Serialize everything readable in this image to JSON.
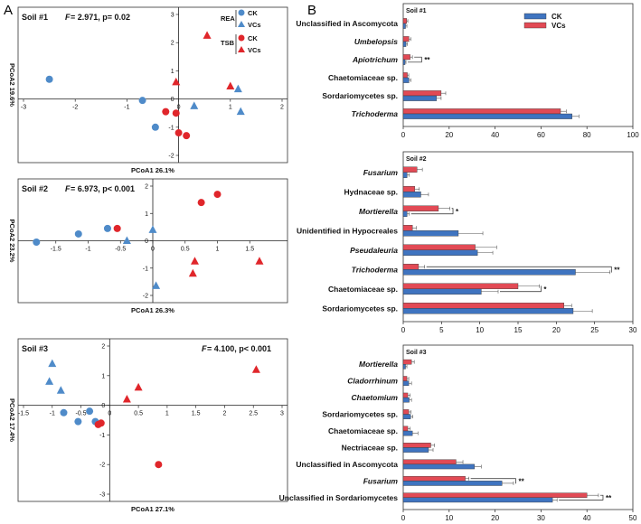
{
  "figure": {
    "panel_a_letter": "A",
    "panel_b_letter": "B"
  },
  "colors": {
    "ck": "#4f8bc9",
    "vcs": "#e0262b",
    "ck_bar": "#3f74c0",
    "vcs_bar": "#e24a55"
  },
  "chart_data": [
    {
      "type": "scatter",
      "panel": "A",
      "soil": "Soil #1",
      "stat_f": "F",
      "stat_rest": "= 2.971, p= 0.02",
      "xlabel": "PCoA1 26.1%",
      "ylabel": "PCoA2 19.6%",
      "xlim": [
        -3,
        2
      ],
      "ylim": [
        -2,
        3
      ],
      "xticks": [
        -3,
        -2,
        -1,
        0,
        1,
        2
      ],
      "yticks": [
        -2,
        -1,
        0,
        1,
        2,
        3
      ],
      "legend": {
        "rea": "REA",
        "tsb": "TSB",
        "ck": "CK",
        "vcs": "VCs",
        "placement": "top-right"
      },
      "series": [
        {
          "name": "REA CK",
          "marker": "circle",
          "color": "ck",
          "x": [
            -2.5,
            -0.7,
            -0.45
          ],
          "y": [
            0.7,
            -0.05,
            -1.0
          ]
        },
        {
          "name": "REA VCs",
          "marker": "triangle",
          "color": "ck",
          "x": [
            0.3,
            1.15,
            1.2
          ],
          "y": [
            -0.25,
            0.35,
            -0.45
          ]
        },
        {
          "name": "TSB CK",
          "marker": "circle",
          "color": "vcs",
          "x": [
            -0.25,
            -0.05,
            0.15,
            0.0
          ],
          "y": [
            -0.45,
            -0.5,
            -1.3,
            -1.2
          ]
        },
        {
          "name": "TSB VCs",
          "marker": "triangle",
          "color": "vcs",
          "x": [
            -0.05,
            0.55,
            1.0
          ],
          "y": [
            0.6,
            2.25,
            0.45
          ]
        }
      ]
    },
    {
      "type": "scatter",
      "panel": "A",
      "soil": "Soil #2",
      "stat_f": "F",
      "stat_rest": "= 6.973, p< 0.001",
      "xlabel": "PCoA1 26.3%",
      "ylabel": "PCoA2 23.2%",
      "xlim": [
        -2,
        2
      ],
      "ylim": [
        -2,
        2
      ],
      "xticks": [
        -1.5,
        -1,
        -0.5,
        0,
        0.5,
        1,
        1.5
      ],
      "yticks": [
        -2,
        -1,
        0,
        1,
        2
      ],
      "series": [
        {
          "name": "REA CK",
          "marker": "circle",
          "color": "ck",
          "x": [
            -1.8,
            -1.15,
            -0.7
          ],
          "y": [
            -0.05,
            0.25,
            0.45
          ]
        },
        {
          "name": "REA VCs",
          "marker": "triangle",
          "color": "ck",
          "x": [
            -0.4,
            0.0,
            0.05
          ],
          "y": [
            0.0,
            0.4,
            -1.65
          ]
        },
        {
          "name": "TSB CK",
          "marker": "circle",
          "color": "vcs",
          "x": [
            -0.55,
            0.75,
            1.0
          ],
          "y": [
            0.45,
            1.4,
            1.7
          ]
        },
        {
          "name": "TSB VCs",
          "marker": "triangle",
          "color": "vcs",
          "x": [
            0.65,
            0.62,
            1.65
          ],
          "y": [
            -0.75,
            -1.2,
            -0.75
          ]
        }
      ]
    },
    {
      "type": "scatter",
      "panel": "A",
      "soil": "Soil #3",
      "stat_f": "F",
      "stat_rest": "= 4.100, p< 0.001",
      "xlabel": "PCoA1 27.1%",
      "ylabel": "PCoA2 17.4%",
      "xlim": [
        -1.5,
        3
      ],
      "ylim": [
        -3,
        2
      ],
      "xticks": [
        -1.5,
        -1,
        -0.5,
        0,
        0.5,
        1,
        1.5,
        2,
        2.5,
        3
      ],
      "yticks": [
        -3,
        -2,
        -1,
        0,
        1,
        2
      ],
      "series": [
        {
          "name": "REA CK",
          "marker": "circle",
          "color": "ck",
          "x": [
            -0.8,
            -0.55,
            -0.35,
            -0.25
          ],
          "y": [
            -0.25,
            -0.55,
            -0.2,
            -0.55
          ]
        },
        {
          "name": "REA VCs",
          "marker": "triangle",
          "color": "ck",
          "x": [
            -1.0,
            -1.05,
            -0.85
          ],
          "y": [
            1.4,
            0.8,
            0.5
          ]
        },
        {
          "name": "TSB CK",
          "marker": "circle",
          "color": "vcs",
          "x": [
            -0.2,
            -0.15,
            0.85
          ],
          "y": [
            -0.65,
            -0.6,
            -2.0
          ]
        },
        {
          "name": "TSB VCs",
          "marker": "triangle",
          "color": "vcs",
          "x": [
            0.3,
            0.5,
            2.55
          ],
          "y": [
            0.2,
            0.6,
            1.2
          ]
        }
      ]
    },
    {
      "type": "bar",
      "orientation": "horizontal",
      "panel": "B",
      "soil": "Soil #1",
      "legend": {
        "ck": "CK",
        "vcs": "VCs",
        "placement": "top-right"
      },
      "xlim": [
        0,
        100
      ],
      "xticks": [
        0,
        20,
        40,
        60,
        80,
        100
      ],
      "categories": [
        "Unclassified in Ascomycota",
        "Umbelopsis",
        "Apiotrichum",
        "Chaetomiaceae sp.",
        "Sordariomycetes sp.",
        "Trichoderma"
      ],
      "italic": [
        false,
        true,
        true,
        false,
        false,
        true
      ],
      "series": [
        {
          "name": "CK",
          "values": [
            1.0,
            1.2,
            0.8,
            2.5,
            14.5,
            73.5
          ],
          "errors": [
            0.6,
            0.6,
            0.4,
            0.8,
            2.0,
            3.0
          ]
        },
        {
          "name": "VCs",
          "values": [
            1.5,
            2.5,
            3.0,
            1.8,
            16.5,
            68.5
          ],
          "errors": [
            0.5,
            0.8,
            1.0,
            0.6,
            2.0,
            2.5
          ]
        }
      ],
      "significance": [
        {
          "category": "Apiotrichum",
          "label": "**",
          "x": 8
        }
      ]
    },
    {
      "type": "bar",
      "orientation": "horizontal",
      "panel": "B",
      "soil": "Soil #2",
      "xlim": [
        0,
        30
      ],
      "xticks": [
        0,
        5,
        10,
        15,
        20,
        25,
        30
      ],
      "categories": [
        "Fusarium",
        "Hydnaceae sp.",
        "Mortierella",
        "Unidentified in Hypocreales",
        "Pseudaleuria",
        "Trichoderma",
        "Chaetomiaceae sp.",
        "Sordariomycetes sp."
      ],
      "italic": [
        true,
        false,
        true,
        false,
        true,
        true,
        false,
        false
      ],
      "series": [
        {
          "name": "CK",
          "values": [
            0.5,
            2.3,
            0.5,
            7.2,
            9.7,
            22.5,
            10.2,
            22.2
          ],
          "errors": [
            0.3,
            1.0,
            0.3,
            3.2,
            2.0,
            4.5,
            2.2,
            2.5
          ]
        },
        {
          "name": "VCs",
          "values": [
            1.8,
            1.5,
            4.6,
            1.2,
            9.4,
            2.0,
            15.0,
            21.0
          ],
          "errors": [
            0.7,
            0.6,
            1.5,
            0.5,
            2.8,
            0.8,
            2.8,
            1.0
          ]
        }
      ],
      "significance": [
        {
          "category": "Mortierella",
          "label": "*",
          "x": 6.5
        },
        {
          "category": "Trichoderma",
          "label": "**",
          "x": 27.2
        },
        {
          "category": "Chaetomiaceae sp.",
          "label": "*",
          "x": 18.0
        }
      ]
    },
    {
      "type": "bar",
      "orientation": "horizontal",
      "panel": "B",
      "soil": "Soil #3",
      "xlim": [
        0,
        50
      ],
      "xticks": [
        0,
        10,
        20,
        30,
        40,
        50
      ],
      "categories": [
        "Mortierella",
        "Cladorrhinum",
        "Chaetomium",
        "Sordariomycetes sp.",
        "Chaetomiaceae sp.",
        "Nectriaceae sp.",
        "Unclassified in Ascomycota",
        "Fusarium",
        "Unclassified in Sordariomycetes"
      ],
      "italic": [
        true,
        true,
        true,
        false,
        false,
        false,
        false,
        true,
        false
      ],
      "series": [
        {
          "name": "CK",
          "values": [
            0.5,
            1.2,
            1.3,
            1.6,
            2.0,
            5.5,
            15.5,
            21.5,
            32.5
          ],
          "errors": [
            0.3,
            0.6,
            0.5,
            0.5,
            1.2,
            1.0,
            1.5,
            2.5,
            1.0
          ]
        },
        {
          "name": "VCs",
          "values": [
            1.8,
            0.8,
            1.0,
            1.2,
            1.0,
            6.0,
            11.5,
            13.5,
            40.0
          ],
          "errors": [
            0.6,
            0.4,
            0.5,
            0.5,
            0.5,
            0.8,
            1.5,
            0.8,
            2.5
          ]
        }
      ],
      "significance": [
        {
          "category": "Fusarium",
          "label": "**",
          "x": 24.5
        },
        {
          "category": "Unclassified in Sordariomycetes",
          "label": "**",
          "x": 43.5
        }
      ]
    }
  ]
}
